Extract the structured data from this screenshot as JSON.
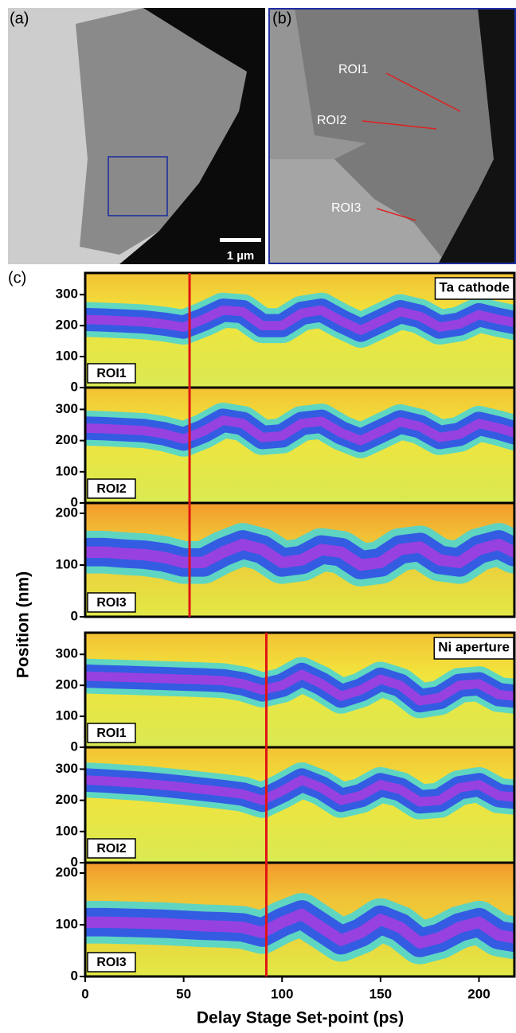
{
  "figure": {
    "a": {
      "label": "(a)",
      "scale_bar": "1 µm"
    },
    "b": {
      "label": "(b)",
      "roi_labels": [
        "ROI1",
        "ROI2",
        "ROI3"
      ]
    }
  },
  "chart_data": {
    "type": "heatmap",
    "panel_label": "(c)",
    "xlabel": "Delay Stage Set-point (ps)",
    "ylabel": "Position (nm)",
    "xlim": [
      0,
      218
    ],
    "xticks": [
      0,
      50,
      100,
      150,
      200
    ],
    "x": [
      0,
      10,
      20,
      30,
      40,
      50,
      60,
      70,
      80,
      90,
      100,
      110,
      120,
      130,
      140,
      150,
      160,
      170,
      180,
      190,
      200,
      210,
      218
    ],
    "groups": [
      {
        "name": "Ta cathode",
        "marker_x": 53,
        "panels": [
          {
            "label": "ROI1",
            "ylim": [
              0,
              370
            ],
            "yticks": [
              0,
              100,
              200,
              300
            ],
            "values": [
              220,
              218,
              215,
              212,
              205,
              195,
              220,
              250,
              245,
              200,
              200,
              240,
              250,
              215,
              185,
              215,
              245,
              230,
              195,
              205,
              235,
              220,
              210
            ]
          },
          {
            "label": "ROI2",
            "ylim": [
              0,
              370
            ],
            "yticks": [
              0,
              100,
              200,
              300
            ],
            "values": [
              240,
              238,
              235,
              232,
              222,
              205,
              230,
              265,
              255,
              210,
              215,
              255,
              262,
              225,
              200,
              230,
              260,
              245,
              210,
              220,
              255,
              240,
              225
            ]
          },
          {
            "label": "ROI3",
            "ylim": [
              0,
              220
            ],
            "yticks": [
              0,
              100,
              200
            ],
            "values": [
              125,
              125,
              122,
              120,
              115,
              105,
              105,
              125,
              140,
              130,
              105,
              110,
              130,
              125,
              100,
              105,
              130,
              135,
              110,
              105,
              130,
              140,
              125
            ]
          }
        ]
      },
      {
        "name": "Ni aperture",
        "marker_x": 92,
        "panels": [
          {
            "label": "ROI1",
            "ylim": [
              0,
              370
            ],
            "yticks": [
              0,
              100,
              200,
              300
            ],
            "values": [
              230,
              228,
              226,
              224,
              222,
              220,
              218,
              215,
              205,
              185,
              200,
              235,
              205,
              165,
              185,
              220,
              200,
              150,
              160,
              200,
              205,
              170,
              165
            ]
          },
          {
            "label": "ROI2",
            "ylim": [
              0,
              370
            ],
            "yticks": [
              0,
              100,
              200,
              300
            ],
            "values": [
              265,
              262,
              258,
              254,
              248,
              242,
              235,
              228,
              220,
              200,
              230,
              265,
              240,
              200,
              215,
              250,
              235,
              195,
              200,
              240,
              250,
              215,
              210
            ]
          },
          {
            "label": "ROI3",
            "ylim": [
              0,
              220
            ],
            "yticks": [
              0,
              100,
              200
            ],
            "values": [
              105,
              105,
              104,
              103,
              102,
              100,
              98,
              97,
              95,
              85,
              105,
              120,
              95,
              70,
              85,
              110,
              95,
              65,
              75,
              95,
              105,
              80,
              75
            ]
          }
        ]
      }
    ]
  }
}
